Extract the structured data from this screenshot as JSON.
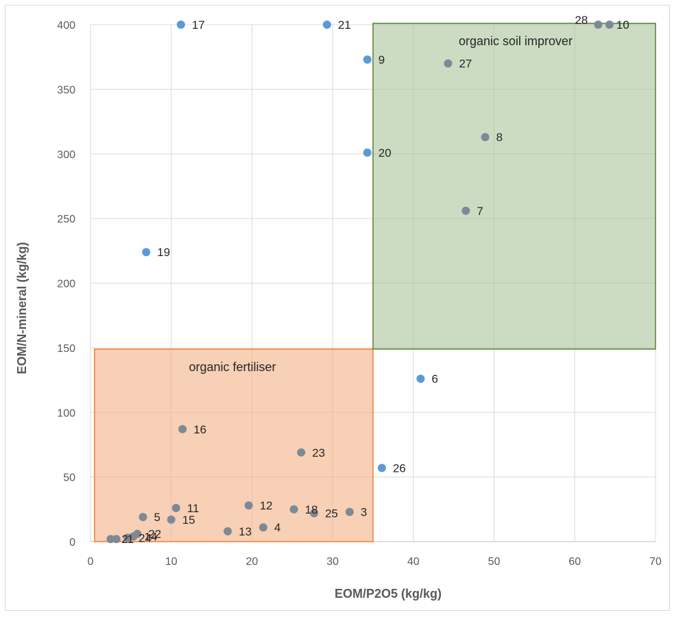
{
  "chart_data": {
    "type": "scatter",
    "xlabel": "EOM/P2O5 (kg/kg)",
    "ylabel": "EOM/N-mineral (kg/kg)",
    "xlim": [
      0,
      70
    ],
    "ylim": [
      0,
      400
    ],
    "xticks": [
      "0",
      "10",
      "20",
      "30",
      "40",
      "50",
      "60",
      "70"
    ],
    "yticks": [
      "0",
      "50",
      "100",
      "150",
      "200",
      "250",
      "300",
      "350",
      "400"
    ],
    "grid": true,
    "colors": {
      "point": "#5b9bd5",
      "point_in_region": "#7d8a96",
      "grid": "#d9d9d9"
    },
    "regions": [
      {
        "label": "organic fertiliser",
        "x": [
          0.5,
          35
        ],
        "y": [
          0,
          149
        ],
        "fill": "#f4b183",
        "stroke": "#ed7d31"
      },
      {
        "label": "organic soil improver",
        "x": [
          35,
          70
        ],
        "y": [
          149,
          401
        ],
        "fill": "#a9c49a",
        "stroke": "#538135"
      }
    ],
    "points": [
      {
        "label": "17",
        "x": 11.2,
        "y": 400
      },
      {
        "label": "21",
        "x": 29.3,
        "y": 400
      },
      {
        "label": "9",
        "x": 34.3,
        "y": 373
      },
      {
        "label": "20",
        "x": 34.3,
        "y": 301
      },
      {
        "label": "19",
        "x": 6.9,
        "y": 224
      },
      {
        "label": "28",
        "x": 62.9,
        "y": 400
      },
      {
        "label": "10",
        "x": 64.3,
        "y": 400
      },
      {
        "label": "27",
        "x": 44.3,
        "y": 370
      },
      {
        "label": "8",
        "x": 48.9,
        "y": 313
      },
      {
        "label": "7",
        "x": 46.5,
        "y": 256
      },
      {
        "label": "6",
        "x": 40.9,
        "y": 126
      },
      {
        "label": "26",
        "x": 36.1,
        "y": 57
      },
      {
        "label": "16",
        "x": 11.4,
        "y": 87
      },
      {
        "label": "23",
        "x": 26.1,
        "y": 69
      },
      {
        "label": "11",
        "x": 10.6,
        "y": 26
      },
      {
        "label": "12",
        "x": 19.6,
        "y": 28
      },
      {
        "label": "18",
        "x": 25.2,
        "y": 25
      },
      {
        "label": "25",
        "x": 27.7,
        "y": 22
      },
      {
        "label": "3",
        "x": 32.1,
        "y": 23
      },
      {
        "label": "5",
        "x": 6.5,
        "y": 19
      },
      {
        "label": "15",
        "x": 10.0,
        "y": 17
      },
      {
        "label": "13",
        "x": 17.0,
        "y": 8
      },
      {
        "label": "4",
        "x": 21.4,
        "y": 11
      },
      {
        "label": "22",
        "x": 5.8,
        "y": 6
      },
      {
        "label": "2",
        "x": 2.5,
        "y": 2
      },
      {
        "label": "1",
        "x": 3.2,
        "y": 2
      },
      {
        "label": "24",
        "x": 4.6,
        "y": 3
      },
      {
        "label": "14",
        "x": 5.3,
        "y": 4
      }
    ]
  }
}
